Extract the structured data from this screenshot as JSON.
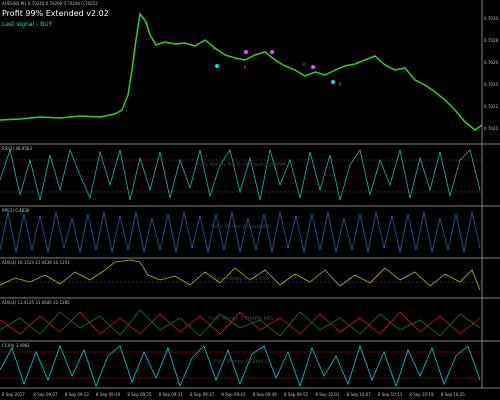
{
  "header": {
    "symbol": "AUDUSD,M1 0.70245 0.70260 0.70244 0.70252",
    "title": "Profit 99% Extended v2.02",
    "signal": "Last signal - BUY"
  },
  "price_axis": [
    "0.7030",
    "0.7028",
    "0.7026",
    "0.7024",
    "0.7022",
    "0.7020"
  ],
  "panels": [
    {
      "label": "RSI(2) 48.9563",
      "watermark": "Fully Money Rsi 6 - Accounting ANN"
    },
    {
      "label": "RPI(2) 0.4836",
      "watermark": "Fully Money 3 Label ABI"
    },
    {
      "label": "ADX(4) 16.1524 21.4436 10.1251",
      "watermark": "Fully Money Trend ADX"
    },
    {
      "label": "ADX(4) 13.4125 31.0640 22.1285",
      "watermark": "Fully Money 3 SHARR RAS"
    },
    {
      "label": "CCI(4) 3.0962",
      "watermark": "Fully Money 3 Label 2"
    }
  ],
  "time_axis": [
    "8 Sep 2017",
    "8 Sep 09:07",
    "8 Sep 09:13",
    "8 Sep 09:19",
    "8 Sep 09:25",
    "8 Sep 09:31",
    "8 Sep 09:37",
    "8 Sep 09:43",
    "8 Sep 09:49",
    "8 Sep 09:55",
    "8 Sep 10:01",
    "8 Sep 10:07",
    "8 Sep 10:13",
    "8 Sep 10:19",
    "8 Sep 10:25"
  ]
}
